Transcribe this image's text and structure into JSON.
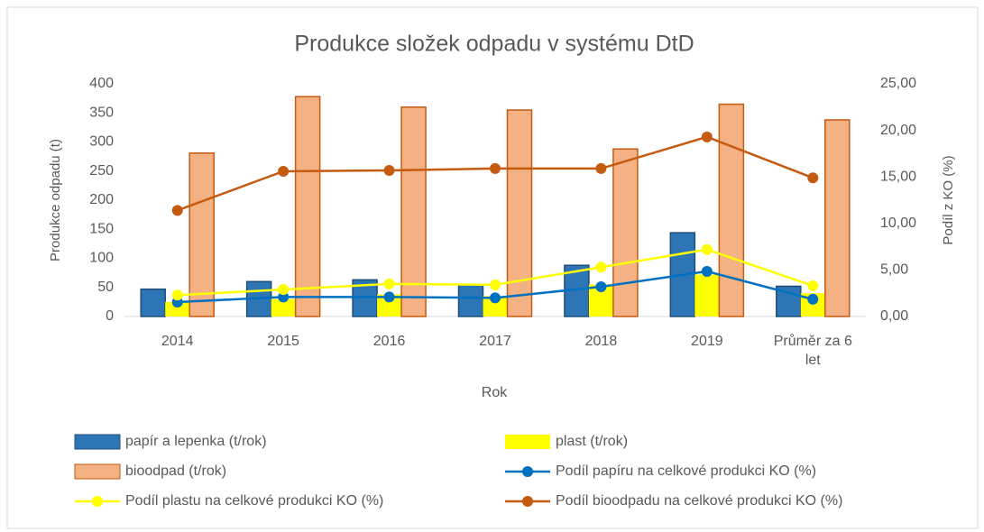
{
  "chart_data": {
    "type": "bar",
    "title": "Produkce složek odpadu v  systému DtD",
    "x_label": "Rok",
    "y_label": "Produkce odpadu  (t)",
    "y2_label": "Podíl z KO (%)",
    "categories": [
      "2014",
      "2015",
      "2016",
      "2017",
      "2018",
      "2019",
      "Průměr za 6 let"
    ],
    "ylim": [
      0,
      400
    ],
    "yticks": [
      0,
      50,
      100,
      150,
      200,
      250,
      300,
      350,
      400
    ],
    "y2lim": [
      0,
      25
    ],
    "y2ticks": [
      {
        "value": 0,
        "label": "0,00"
      },
      {
        "value": 5,
        "label": "5,00"
      },
      {
        "value": 10,
        "label": "10,00"
      },
      {
        "value": 15,
        "label": "15,00"
      },
      {
        "value": 20,
        "label": "20,00"
      },
      {
        "value": 25,
        "label": "25,00"
      }
    ],
    "grid": false,
    "legend": "bottom",
    "series": [
      {
        "name": "papír a lepenka (t/rok)",
        "type": "bar",
        "color": "#2e75b6",
        "values": [
          47,
          60,
          63,
          55,
          88,
          144,
          52
        ]
      },
      {
        "name": "plast (t/rok)",
        "type": "bar",
        "color": "#ffff00",
        "values": [
          25,
          30,
          38,
          35,
          55,
          72,
          40
        ]
      },
      {
        "name": "bioodpad (t/rok)",
        "type": "bar",
        "color": "#f4b183",
        "values": [
          281,
          378,
          360,
          355,
          288,
          365,
          338
        ]
      },
      {
        "name": "Podíl papíru na celkové produkci KO (%)",
        "type": "line",
        "axis": "y2",
        "color": "#0070c0",
        "values": [
          1.55,
          2.1,
          2.1,
          2.0,
          3.2,
          4.85,
          1.85
        ]
      },
      {
        "name": "Podíl plastu na celkové produkci KO (%)",
        "type": "line",
        "axis": "y2",
        "color": "#ffff00",
        "values": [
          2.3,
          2.9,
          3.5,
          3.4,
          5.3,
          7.2,
          3.3
        ]
      },
      {
        "name": "Podíl bioodpadu na celkové produkci KO (%)",
        "type": "line",
        "axis": "y2",
        "color": "#c55a11",
        "values": [
          11.4,
          15.6,
          15.7,
          15.9,
          15.9,
          19.3,
          14.9
        ]
      }
    ]
  }
}
